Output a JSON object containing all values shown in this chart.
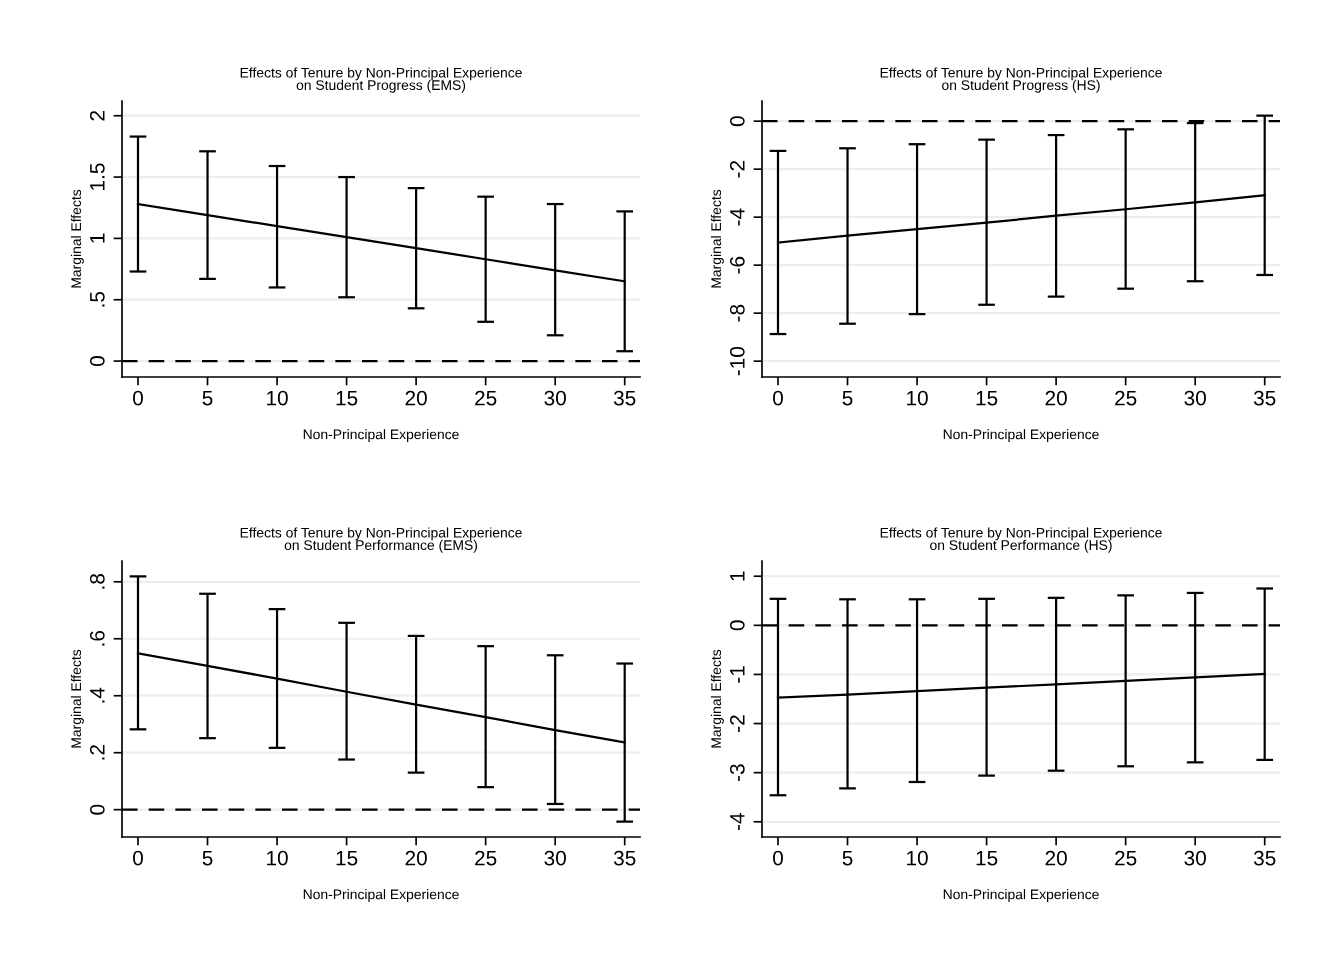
{
  "chart_data": [
    {
      "type": "line",
      "title": "Effects of Tenure by Non-Principal Experience\non Student Progress (EMS)",
      "xlabel": "Non-Principal Experience",
      "ylabel": "Marginal Effects",
      "x": [
        0,
        5,
        10,
        15,
        20,
        25,
        30,
        35
      ],
      "series": [
        {
          "color": "#000000",
          "values": [
            1.28,
            1.19,
            1.1,
            1.01,
            0.92,
            0.83,
            0.74,
            0.65
          ],
          "errors": [
            [
              0.73,
              1.83
            ],
            [
              0.67,
              1.71
            ],
            [
              0.6,
              1.59
            ],
            [
              0.52,
              1.5
            ],
            [
              0.43,
              1.41
            ],
            [
              0.32,
              1.34
            ],
            [
              0.21,
              1.28
            ],
            [
              0.08,
              1.22
            ]
          ]
        }
      ],
      "xlim": [
        -1.15,
        36.1
      ],
      "xticks": [
        0,
        5,
        10,
        15,
        20,
        25,
        30,
        35
      ],
      "ylim": [
        -0.13,
        2.12
      ],
      "yticks": [
        0,
        {
          "value": 0.5,
          "label": ".5"
        },
        1,
        1.5,
        2
      ],
      "ref_lines": [
        {
          "axis": "y",
          "value": 0,
          "color": "#000000",
          "line_style": "dashed"
        }
      ],
      "grid": "y",
      "marker": "none",
      "line_style": "solid"
    },
    {
      "type": "line",
      "title": "Effects of Tenure by Non-Principal Experience\non Student Progress (HS)",
      "xlabel": "Non-Principal Experience",
      "ylabel": "Marginal Effects",
      "x": [
        0,
        5,
        10,
        15,
        20,
        25,
        30,
        35
      ],
      "series": [
        {
          "color": "#000000",
          "values": [
            -5.06,
            -4.77,
            -4.5,
            -4.23,
            -3.94,
            -3.67,
            -3.38,
            -3.09
          ],
          "errors": [
            [
              -8.87,
              -1.24
            ],
            [
              -8.44,
              -1.13
            ],
            [
              -8.04,
              -0.96
            ],
            [
              -7.65,
              -0.77
            ],
            [
              -7.31,
              -0.58
            ],
            [
              -6.98,
              -0.34
            ],
            [
              -6.67,
              -0.08
            ],
            [
              -6.41,
              0.23
            ]
          ]
        }
      ],
      "xlim": [
        -1.15,
        36.1
      ],
      "xticks": [
        0,
        5,
        10,
        15,
        20,
        25,
        30,
        35
      ],
      "ylim": [
        -10.66,
        0.84
      ],
      "yticks": [
        -10,
        -8,
        -6,
        -4,
        -2,
        0
      ],
      "ref_lines": [
        {
          "axis": "y",
          "value": 0,
          "color": "#000000",
          "line_style": "dashed"
        }
      ],
      "grid": "y",
      "marker": "none",
      "line_style": "solid"
    },
    {
      "type": "line",
      "title": "Effects of Tenure by Non-Principal Experience\non Student Performance (EMS)",
      "xlabel": "Non-Principal Experience",
      "ylabel": "Marginal Effects",
      "x": [
        0,
        5,
        10,
        15,
        20,
        25,
        30,
        35
      ],
      "series": [
        {
          "color": "#000000",
          "values": [
            0.549,
            0.505,
            0.46,
            0.414,
            0.369,
            0.325,
            0.279,
            0.236
          ],
          "errors": [
            [
              0.282,
              0.819
            ],
            [
              0.251,
              0.758
            ],
            [
              0.217,
              0.704
            ],
            [
              0.176,
              0.656
            ],
            [
              0.13,
              0.61
            ],
            [
              0.079,
              0.574
            ],
            [
              0.02,
              0.542
            ],
            [
              -0.042,
              0.513
            ]
          ]
        }
      ],
      "xlim": [
        -1.15,
        36.1
      ],
      "xticks": [
        0,
        5,
        10,
        15,
        20,
        25,
        30,
        35
      ],
      "ylim": [
        -0.096,
        0.873
      ],
      "yticks": [
        0,
        {
          "value": 0.2,
          "label": ".2"
        },
        {
          "value": 0.4,
          "label": ".4"
        },
        {
          "value": 0.6,
          "label": ".6"
        },
        {
          "value": 0.8,
          "label": ".8"
        }
      ],
      "ref_lines": [
        {
          "axis": "y",
          "value": 0,
          "color": "#000000",
          "line_style": "dashed"
        }
      ],
      "grid": "y",
      "marker": "none",
      "line_style": "solid"
    },
    {
      "type": "line",
      "title": "Effects of Tenure by Non-Principal Experience\non Student Performance (HS)",
      "xlabel": "Non-Principal Experience",
      "ylabel": "Marginal Effects",
      "x": [
        0,
        5,
        10,
        15,
        20,
        25,
        30,
        35
      ],
      "series": [
        {
          "color": "#000000",
          "values": [
            -1.47,
            -1.41,
            -1.34,
            -1.27,
            -1.2,
            -1.13,
            -1.06,
            -0.99
          ],
          "errors": [
            [
              -3.46,
              0.54
            ],
            [
              -3.32,
              0.53
            ],
            [
              -3.19,
              0.53
            ],
            [
              -3.06,
              0.54
            ],
            [
              -2.96,
              0.56
            ],
            [
              -2.87,
              0.61
            ],
            [
              -2.79,
              0.66
            ],
            [
              -2.74,
              0.75
            ]
          ]
        }
      ],
      "xlim": [
        -1.15,
        36.1
      ],
      "xticks": [
        0,
        5,
        10,
        15,
        20,
        25,
        30,
        35
      ],
      "ylim": [
        -4.31,
        1.31
      ],
      "yticks": [
        -4,
        -3,
        -2,
        -1,
        0,
        1
      ],
      "ref_lines": [
        {
          "axis": "y",
          "value": 0,
          "color": "#000000",
          "line_style": "dashed"
        }
      ],
      "grid": "y",
      "marker": "none",
      "line_style": "solid"
    }
  ]
}
